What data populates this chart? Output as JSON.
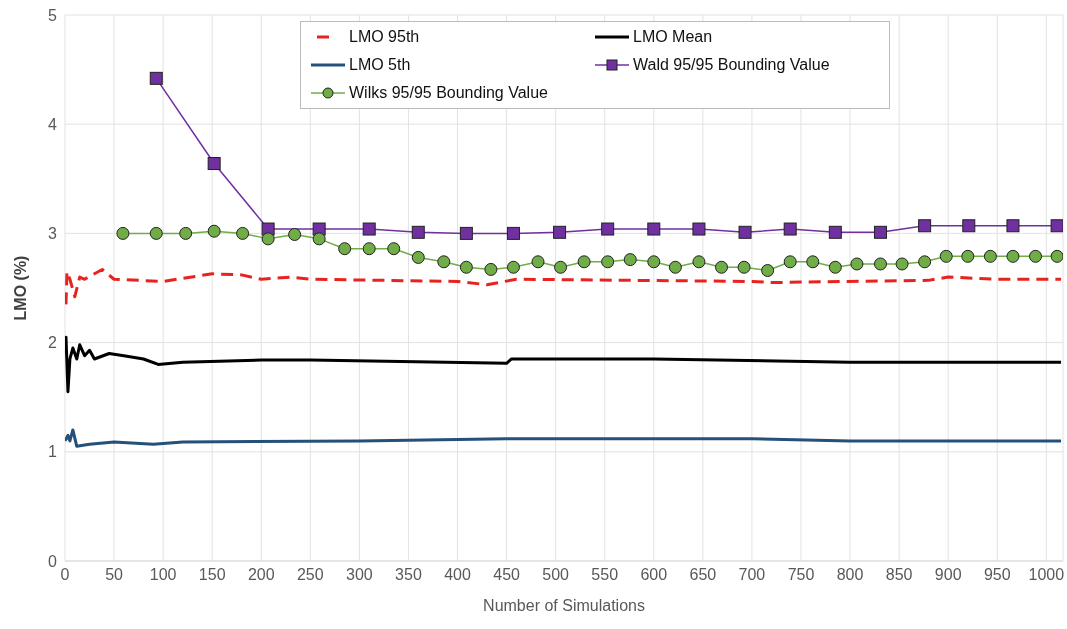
{
  "chart_data": {
    "type": "line",
    "xlabel": "Number of Simulations",
    "ylabel": "LMO (%)",
    "xlim": [
      0,
      1017
    ],
    "xticks": [
      0,
      50,
      100,
      150,
      200,
      250,
      300,
      350,
      400,
      450,
      500,
      550,
      600,
      650,
      700,
      750,
      800,
      850,
      900,
      950,
      1000
    ],
    "ylim": [
      0,
      5
    ],
    "yticks": [
      0,
      1,
      2,
      3,
      4,
      5
    ],
    "grid": true,
    "legend": "top",
    "series": [
      {
        "name": "LMO 95th",
        "color": "#e8231f",
        "line_style": "dashed",
        "marker": "none",
        "x": [
          1,
          2,
          5,
          10,
          15,
          20,
          38,
          50,
          100,
          150,
          180,
          200,
          230,
          250,
          400,
          430,
          460,
          700,
          720,
          880,
          900,
          950,
          1015
        ],
        "values": [
          2.35,
          2.65,
          2.58,
          2.42,
          2.6,
          2.58,
          2.67,
          2.58,
          2.56,
          2.63,
          2.62,
          2.58,
          2.6,
          2.58,
          2.56,
          2.53,
          2.58,
          2.56,
          2.55,
          2.57,
          2.6,
          2.58,
          2.58
        ]
      },
      {
        "name": "LMO Mean",
        "color": "#000000",
        "line_style": "solid",
        "marker": "none",
        "x": [
          0,
          1,
          3,
          5,
          8,
          12,
          15,
          20,
          25,
          30,
          45,
          60,
          80,
          95,
          120,
          200,
          250,
          450,
          455,
          600,
          800,
          1015
        ],
        "values": [
          1.9,
          2.05,
          1.55,
          1.85,
          1.95,
          1.85,
          1.98,
          1.88,
          1.93,
          1.85,
          1.9,
          1.88,
          1.85,
          1.8,
          1.82,
          1.84,
          1.84,
          1.81,
          1.85,
          1.85,
          1.82,
          1.82
        ]
      },
      {
        "name": "LMO 5th",
        "color": "#24507a",
        "line_style": "solid",
        "marker": "none",
        "x": [
          0,
          3,
          5,
          8,
          12,
          25,
          50,
          90,
          120,
          300,
          450,
          700,
          800,
          1015
        ],
        "values": [
          1.1,
          1.15,
          1.1,
          1.2,
          1.05,
          1.07,
          1.09,
          1.07,
          1.09,
          1.1,
          1.12,
          1.12,
          1.1,
          1.1
        ]
      },
      {
        "name": "Wald 95/95 Bounding Value",
        "color": "#7030a0",
        "line_style": "solid",
        "marker": "square",
        "x": [
          93,
          152,
          207,
          259,
          310,
          360,
          409,
          457,
          504,
          553,
          600,
          646,
          693,
          739,
          785,
          831,
          876,
          921,
          966,
          1011
        ],
        "values": [
          4.42,
          3.64,
          3.04,
          3.04,
          3.04,
          3.01,
          3.0,
          3.0,
          3.01,
          3.04,
          3.04,
          3.04,
          3.01,
          3.04,
          3.01,
          3.01,
          3.07,
          3.07,
          3.07,
          3.07
        ]
      },
      {
        "name": "Wilks 95/95 Bounding Value",
        "color": "#70ad47",
        "line_style": "solid",
        "marker": "circle",
        "x": [
          59,
          93,
          123,
          152,
          181,
          207,
          234,
          259,
          285,
          310,
          335,
          360,
          386,
          409,
          434,
          457,
          482,
          505,
          529,
          553,
          576,
          600,
          622,
          646,
          669,
          692,
          716,
          739,
          762,
          785,
          807,
          831,
          853,
          876,
          898,
          920,
          943,
          966,
          989,
          1011
        ],
        "values": [
          3.0,
          3.0,
          3.0,
          3.02,
          3.0,
          2.95,
          2.99,
          2.95,
          2.86,
          2.86,
          2.86,
          2.78,
          2.74,
          2.69,
          2.67,
          2.69,
          2.74,
          2.69,
          2.74,
          2.74,
          2.76,
          2.74,
          2.69,
          2.74,
          2.69,
          2.69,
          2.66,
          2.74,
          2.74,
          2.69,
          2.72,
          2.72,
          2.72,
          2.74,
          2.79,
          2.79,
          2.79,
          2.79,
          2.79,
          2.79
        ]
      }
    ]
  }
}
